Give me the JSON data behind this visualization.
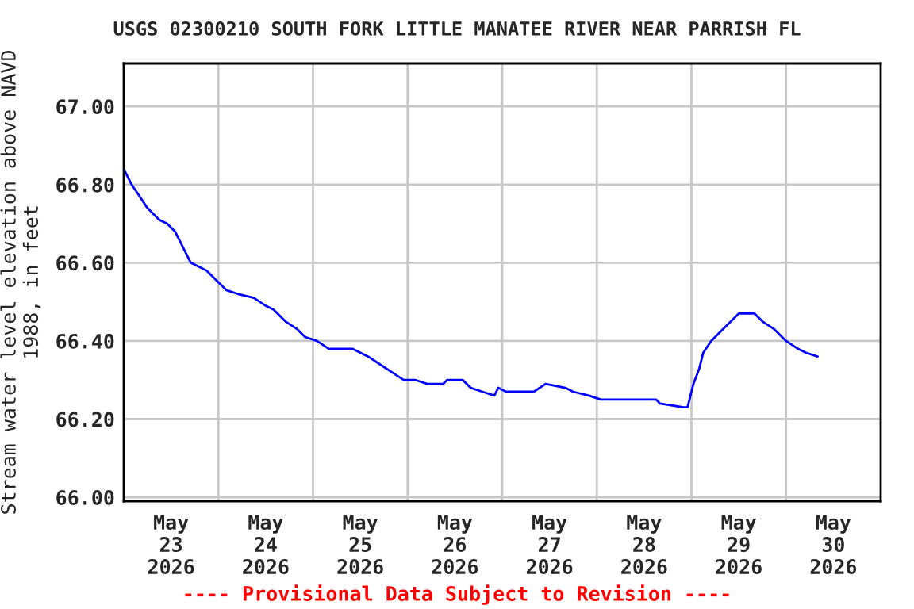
{
  "chart_data": {
    "type": "line",
    "title": "USGS 02300210 SOUTH FORK LITTLE MANATEE RIVER NEAR PARRISH FL",
    "ylabel": "Stream water level elevation above NAVD\n1988, in feet",
    "annotations": [
      "---- Provisional Data Subject to Revision ----"
    ],
    "x": [
      "2026-05-23T00:00",
      "2026-05-23T02:00",
      "2026-05-23T04:00",
      "2026-05-23T06:00",
      "2026-05-23T09:00",
      "2026-05-23T11:00",
      "2026-05-23T13:00",
      "2026-05-23T15:00",
      "2026-05-23T17:00",
      "2026-05-23T19:00",
      "2026-05-23T21:00",
      "2026-05-24T00:00",
      "2026-05-24T02:00",
      "2026-05-24T05:00",
      "2026-05-24T09:00",
      "2026-05-24T12:00",
      "2026-05-24T14:00",
      "2026-05-24T17:00",
      "2026-05-24T20:00",
      "2026-05-24T22:00",
      "2026-05-25T01:00",
      "2026-05-25T04:00",
      "2026-05-25T10:00",
      "2026-05-25T14:00",
      "2026-05-25T17:00",
      "2026-05-25T20:00",
      "2026-05-25T23:00",
      "2026-05-26T02:00",
      "2026-05-26T05:00",
      "2026-05-26T09:00",
      "2026-05-26T10:00",
      "2026-05-26T14:00",
      "2026-05-26T16:00",
      "2026-05-26T19:00",
      "2026-05-26T22:00",
      "2026-05-26T23:00",
      "2026-05-27T01:00",
      "2026-05-27T08:00",
      "2026-05-27T11:00",
      "2026-05-27T16:00",
      "2026-05-27T18:00",
      "2026-05-27T22:00",
      "2026-05-28T01:00",
      "2026-05-28T15:00",
      "2026-05-28T16:00",
      "2026-05-28T22:00",
      "2026-05-28T23:00",
      "2026-05-29T00:30",
      "2026-05-29T02:00",
      "2026-05-29T03:00",
      "2026-05-29T05:00",
      "2026-05-29T07:00",
      "2026-05-29T10:00",
      "2026-05-29T12:00",
      "2026-05-29T16:00",
      "2026-05-29T18:00",
      "2026-05-29T21:00",
      "2026-05-30T00:00",
      "2026-05-30T03:00",
      "2026-05-30T05:00",
      "2026-05-30T08:00"
    ],
    "series": [
      {
        "color": "#0000ff",
        "values": [
          66.84,
          66.8,
          66.77,
          66.74,
          66.71,
          66.7,
          66.68,
          66.64,
          66.6,
          66.59,
          66.58,
          66.55,
          66.53,
          66.52,
          66.51,
          66.49,
          66.48,
          66.45,
          66.43,
          66.41,
          66.4,
          66.38,
          66.38,
          66.36,
          66.34,
          66.32,
          66.3,
          66.3,
          66.29,
          66.29,
          66.3,
          66.3,
          66.28,
          66.27,
          66.26,
          66.28,
          66.27,
          66.27,
          66.29,
          66.28,
          66.27,
          66.26,
          66.25,
          66.25,
          66.24,
          66.23,
          66.23,
          66.29,
          66.33,
          66.37,
          66.4,
          66.42,
          66.45,
          66.47,
          66.47,
          66.45,
          66.43,
          66.4,
          66.38,
          66.37,
          66.36
        ]
      }
    ],
    "xlim": [
      "2026-05-23",
      "2026-05-31"
    ],
    "xticks": [
      {
        "value": "2026-05-23T12:00",
        "label": "May\n23\n2026"
      },
      {
        "value": "2026-05-24T12:00",
        "label": "May\n24\n2026"
      },
      {
        "value": "2026-05-25T12:00",
        "label": "May\n25\n2026"
      },
      {
        "value": "2026-05-26T12:00",
        "label": "May\n26\n2026"
      },
      {
        "value": "2026-05-27T12:00",
        "label": "May\n27\n2026"
      },
      {
        "value": "2026-05-28T12:00",
        "label": "May\n28\n2026"
      },
      {
        "value": "2026-05-29T12:00",
        "label": "May\n29\n2026"
      },
      {
        "value": "2026-05-30T12:00",
        "label": "May\n30\n2026"
      },
      {
        "value": "2026-05-24",
        "label": null
      },
      {
        "value": "2026-05-25",
        "label": null
      },
      {
        "value": "2026-05-26",
        "label": null
      },
      {
        "value": "2026-05-27",
        "label": null
      },
      {
        "value": "2026-05-28",
        "label": null
      },
      {
        "value": "2026-05-29",
        "label": null
      },
      {
        "value": "2026-05-30",
        "label": null
      }
    ],
    "ylim": [
      65.99,
      67.11
    ],
    "yticks": [
      {
        "value": 66,
        "label": "66.00"
      },
      {
        "value": 66.2,
        "label": "66.20"
      },
      {
        "value": 66.4,
        "label": "66.40"
      },
      {
        "value": 66.6,
        "label": "66.60"
      },
      {
        "value": 66.8,
        "label": "66.80"
      },
      {
        "value": 67,
        "label": "67.00"
      }
    ],
    "grid": true,
    "line_style": "solid"
  }
}
